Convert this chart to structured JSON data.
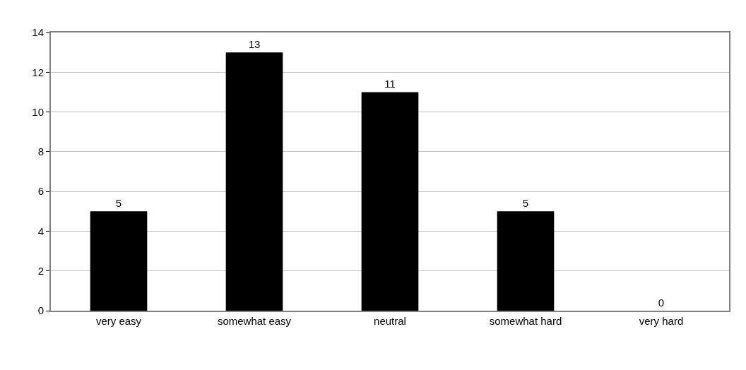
{
  "chart_data": {
    "type": "bar",
    "categories": [
      "very easy",
      "somewhat easy",
      "neutral",
      "somewhat hard",
      "very hard"
    ],
    "values": [
      5,
      13,
      11,
      5,
      0
    ],
    "color": "#000000",
    "ylim": [
      0,
      14
    ],
    "yticks": [
      0,
      2,
      4,
      6,
      8,
      10,
      12,
      14
    ],
    "grid": "y",
    "data_labels": true,
    "legend": false
  }
}
